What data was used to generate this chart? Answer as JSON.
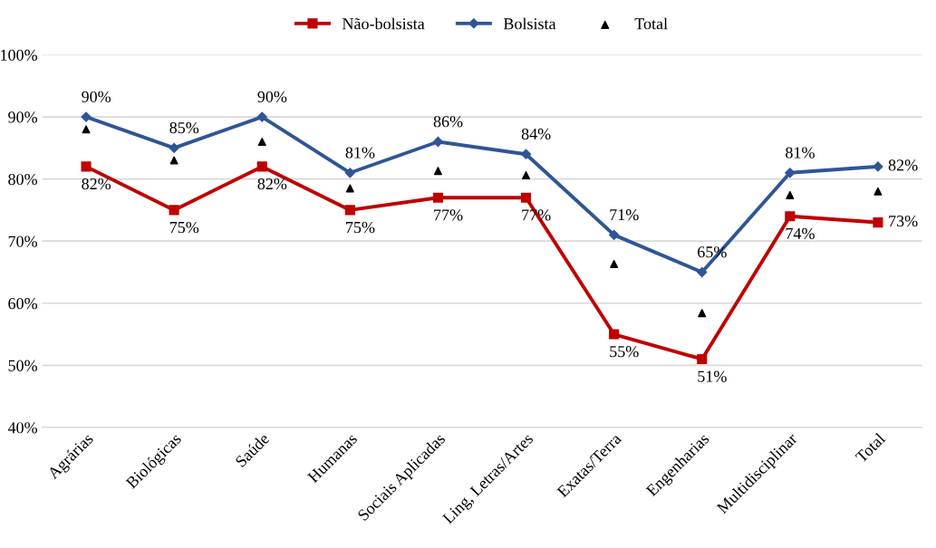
{
  "chart_data": {
    "type": "line",
    "categories": [
      "Agrárias",
      "Biológicas",
      "Saúde",
      "Humanas",
      "Sociais Aplicadas",
      "Ling, Letras/Artes",
      "Exatas/Terra",
      "Engenharias",
      "Multidisciplinar",
      "Total"
    ],
    "series": [
      {
        "name": "Não-bolsista",
        "color": "#c00000",
        "marker": "square",
        "values": [
          82,
          75,
          82,
          75,
          77,
          77,
          55,
          51,
          74,
          73
        ],
        "value_labels": [
          "82%",
          "75%",
          "82%",
          "75%",
          "77%",
          "77%",
          "55%",
          "51%",
          "74%",
          "73%"
        ]
      },
      {
        "name": "Bolsista",
        "color": "#2f5597",
        "marker": "diamond",
        "values": [
          90,
          85,
          90,
          81,
          86,
          84,
          71,
          65,
          81,
          82
        ],
        "value_labels": [
          "90%",
          "85%",
          "90%",
          "81%",
          "86%",
          "84%",
          "71%",
          "65%",
          "81%",
          "82%"
        ]
      },
      {
        "name": "Total",
        "type": "scatter",
        "color": "#000000",
        "marker": "triangle",
        "values": [
          88,
          83,
          86,
          78.5,
          81.3,
          80.6,
          66.3,
          58.4,
          77.4,
          78
        ]
      }
    ],
    "ylim": [
      40,
      100
    ],
    "yticks": [
      {
        "value": 40,
        "label": "40%"
      },
      {
        "value": 50,
        "label": "50%"
      },
      {
        "value": 60,
        "label": "60%"
      },
      {
        "value": 70,
        "label": "70%"
      },
      {
        "value": 80,
        "label": "80%"
      },
      {
        "value": 90,
        "label": "90%"
      },
      {
        "value": 100,
        "label": "100%"
      }
    ],
    "grid": "y",
    "legend": "top"
  }
}
